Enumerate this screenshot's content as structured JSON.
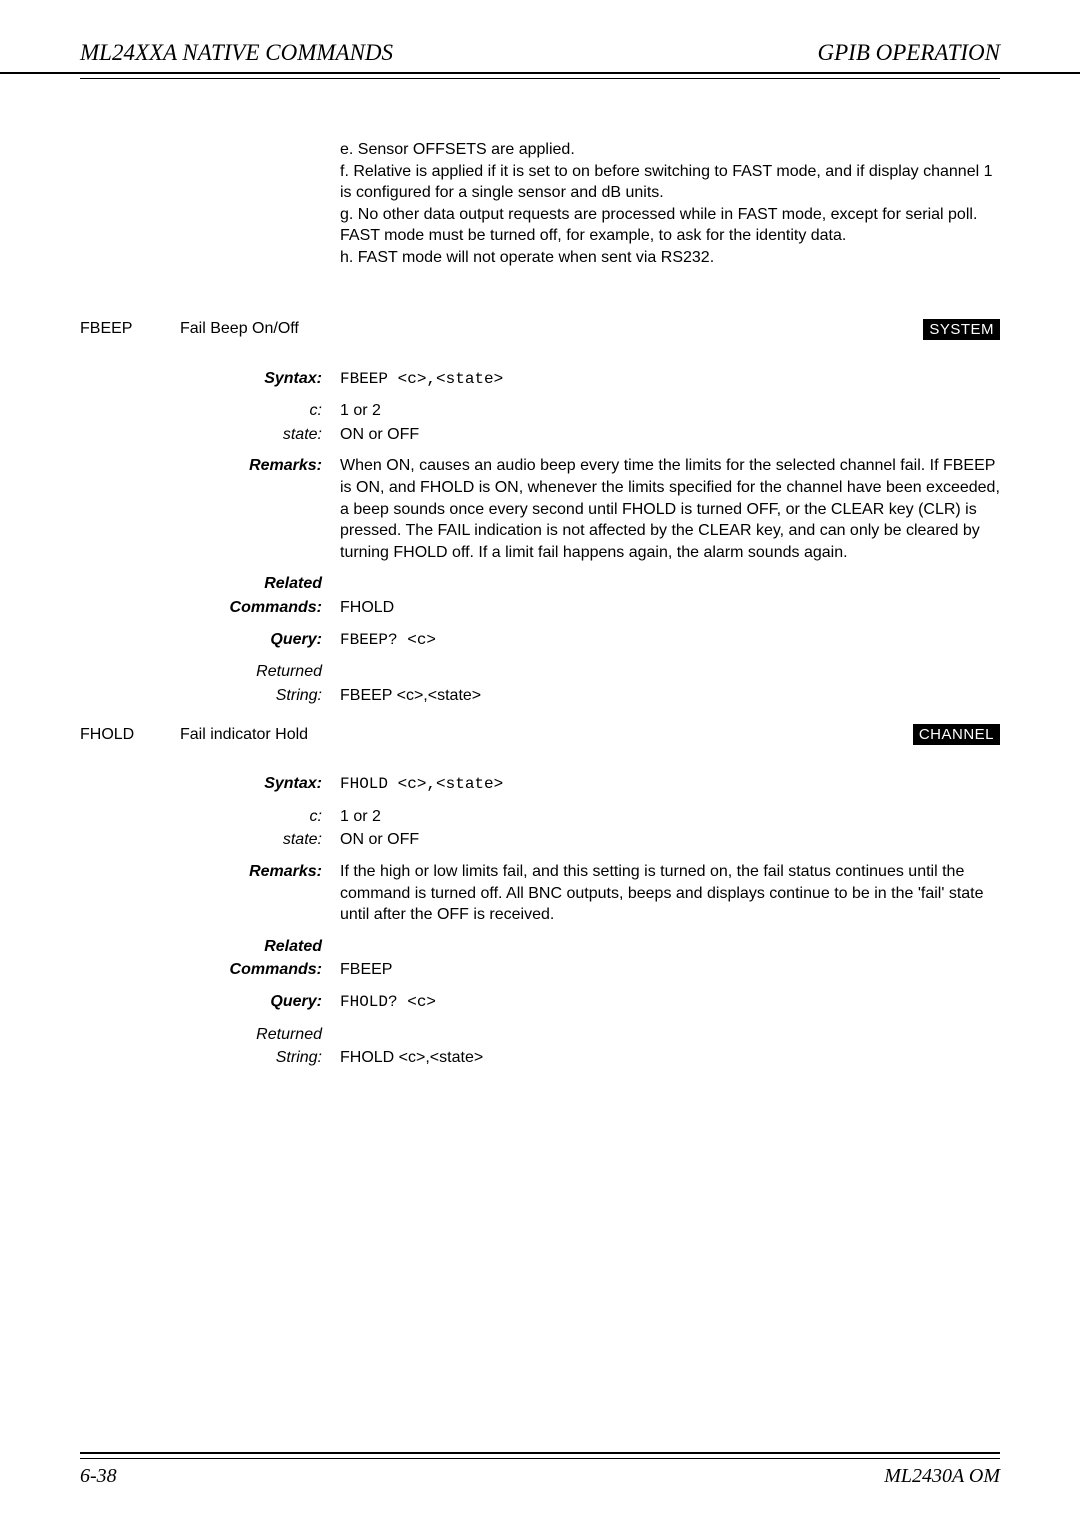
{
  "header": {
    "left": "ML24XXA NATIVE COMMANDS",
    "right": "GPIB OPERATION"
  },
  "notes": {
    "e": "e. Sensor OFFSETS are applied.",
    "f": "f. Relative is applied if it is set to on before switching to FAST mode, and if display channel 1 is configured for a single sensor and dB units.",
    "g": "g. No other data output requests are processed while in FAST mode, except for serial poll. FAST mode must be turned off, for example, to ask for the identity data.",
    "h": "h. FAST mode will not operate when sent via RS232."
  },
  "fbeep": {
    "name": "FBEEP",
    "desc": "Fail Beep On/Off",
    "badge": "SYSTEM",
    "syntax_label": "Syntax:",
    "syntax": "FBEEP <c>,<state>",
    "c_label": "c:",
    "c": "1 or 2",
    "state_label": "state:",
    "state": "ON or OFF",
    "remarks_label": "Remarks:",
    "remarks": "When ON, causes an audio beep every time the limits for the selected channel fail. If FBEEP is ON, and FHOLD is ON, whenever the limits specified for the channel have been exceeded, a beep sounds once every second until FHOLD is turned OFF, or the CLEAR key (CLR) is pressed. The FAIL indication is not affected by the CLEAR key, and can only be cleared by turning FHOLD off. If a limit fail happens again, the alarm sounds again.",
    "related_label1": "Related",
    "related_label2": "Commands:",
    "related": "FHOLD",
    "query_label": "Query:",
    "query": "FBEEP? <c>",
    "returned_label1": "Returned",
    "returned_label2": "String:",
    "returned": "FBEEP <c>,<state>"
  },
  "fhold": {
    "name": "FHOLD",
    "desc": "Fail indicator Hold",
    "badge": "CHANNEL",
    "syntax_label": "Syntax:",
    "syntax": "FHOLD <c>,<state>",
    "c_label": "c:",
    "c": "1 or 2",
    "state_label": "state:",
    "state": "ON or OFF",
    "remarks_label": "Remarks:",
    "remarks": "If the high or low limits fail, and this setting is turned on, the fail status continues until the command is turned off. All BNC outputs, beeps and displays continue to be in the 'fail' state until after the OFF is received.",
    "related_label1": "Related",
    "related_label2": "Commands:",
    "related": "FBEEP",
    "query_label": "Query:",
    "query": "FHOLD? <c>",
    "returned_label1": "Returned",
    "returned_label2": "String:",
    "returned": "FHOLD <c>,<state>"
  },
  "footer": {
    "left": "6-38",
    "right": "ML2430A OM"
  }
}
